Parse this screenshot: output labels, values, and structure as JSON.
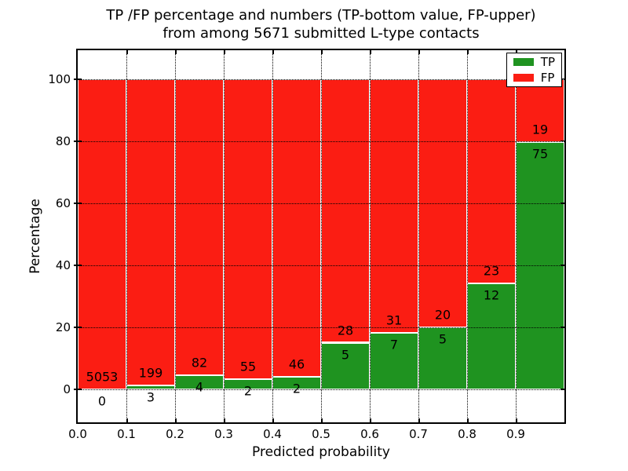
{
  "figure": {
    "title_line1": "TP /FP percentage and numbers (TP-bottom value, FP-upper)",
    "title_line2": "from among 5671 submitted L-type contacts",
    "xlabel": "Predicted probability",
    "ylabel": "Percentage",
    "background_color": "#ffffff",
    "text_color": "#000000"
  },
  "legend": {
    "position": "upper right",
    "items": [
      {
        "label": "TP",
        "color": "#1f9320"
      },
      {
        "label": "FP",
        "color": "#fb1d13"
      }
    ]
  },
  "chart_data": {
    "type": "bar",
    "stacked": true,
    "unit": "percent",
    "title": "TP /FP percentage and numbers (TP-bottom value, FP-upper) from among 5671 submitted L-type contacts",
    "xlabel": "Predicted probability",
    "ylabel": "Percentage",
    "total_submitted_contacts": 5671,
    "bin_width": 0.1,
    "categories": [
      "0.0-0.1",
      "0.1-0.2",
      "0.2-0.3",
      "0.3-0.4",
      "0.4-0.5",
      "0.5-0.6",
      "0.6-0.7",
      "0.7-0.8",
      "0.8-0.9",
      "0.9-1.0"
    ],
    "series": [
      {
        "name": "TP",
        "color": "#1f9320",
        "counts": [
          0,
          3,
          4,
          2,
          2,
          5,
          7,
          5,
          12,
          75
        ],
        "percent": [
          0.0,
          1.49,
          4.65,
          3.51,
          4.17,
          15.15,
          18.42,
          20.0,
          34.29,
          79.79
        ]
      },
      {
        "name": "FP",
        "color": "#fb1d13",
        "counts": [
          5053,
          199,
          82,
          55,
          46,
          28,
          31,
          20,
          23,
          19
        ],
        "percent": [
          100.0,
          98.51,
          95.35,
          96.49,
          95.83,
          84.85,
          81.58,
          80.0,
          65.71,
          20.21
        ]
      }
    ],
    "annotation_rule": "FP count printed above green/red boundary, TP count printed below it",
    "xticks": [
      "0.0",
      "0.1",
      "0.2",
      "0.3",
      "0.4",
      "0.5",
      "0.6",
      "0.7",
      "0.8",
      "0.9"
    ],
    "yticks": [
      0,
      20,
      40,
      60,
      80,
      100
    ],
    "xlim": [
      0.0,
      1.0
    ],
    "ylim": [
      -10.5,
      109.3
    ],
    "grid": "dotted",
    "grid_color": "#000000",
    "bar_edge_color": "#ffffff"
  }
}
